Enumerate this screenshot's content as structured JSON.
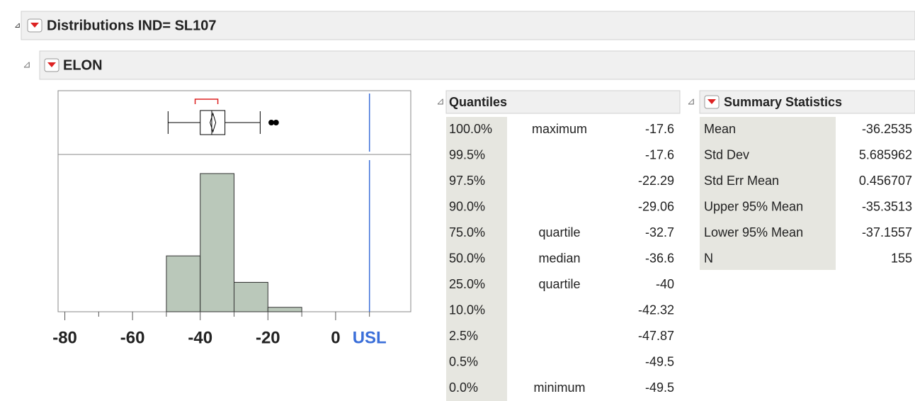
{
  "header": {
    "title": "Distributions IND= SL107"
  },
  "variable": {
    "title": "ELON"
  },
  "chart_data": {
    "type": "histogram",
    "bins": [
      -50,
      -40,
      -30,
      -20,
      -10
    ],
    "values": [
      38,
      94,
      20,
      3
    ],
    "color": "#bac8ba",
    "xlim": [
      -82,
      22.2
    ],
    "ylim": [
      0,
      107
    ],
    "xticks": [
      -80,
      -60,
      -40,
      -20,
      0
    ],
    "xminor_ticks": [
      -70,
      -50,
      -30,
      -10,
      10
    ],
    "reference_line": {
      "label": "USL",
      "value": 10,
      "color": "#3b6fd9"
    },
    "box_plot": {
      "lower_whisker": -49.5,
      "q1": -40,
      "median": -36.6,
      "q3": -32.7,
      "upper_whisker": -22.29,
      "mean": -36.25,
      "shortest_half": [
        -41.5,
        -34.8
      ],
      "outliers": [
        -19,
        -17.6
      ]
    }
  },
  "quantiles": {
    "title": "Quantiles",
    "rows": [
      [
        "100.0%",
        "maximum",
        "-17.6"
      ],
      [
        "99.5%",
        "",
        "-17.6"
      ],
      [
        "97.5%",
        "",
        "-22.29"
      ],
      [
        "90.0%",
        "",
        "-29.06"
      ],
      [
        "75.0%",
        "quartile",
        "-32.7"
      ],
      [
        "50.0%",
        "median",
        "-36.6"
      ],
      [
        "25.0%",
        "quartile",
        "-40"
      ],
      [
        "10.0%",
        "",
        "-42.32"
      ],
      [
        "2.5%",
        "",
        "-47.87"
      ],
      [
        "0.5%",
        "",
        "-49.5"
      ],
      [
        "0.0%",
        "minimum",
        "-49.5"
      ]
    ]
  },
  "summary": {
    "title": "Summary Statistics",
    "rows": [
      [
        "Mean",
        "-36.2535"
      ],
      [
        "Std Dev",
        "5.685962"
      ],
      [
        "Std Err Mean",
        "0.456707"
      ],
      [
        "Upper 95% Mean",
        "-35.3513"
      ],
      [
        "Lower 95% Mean",
        "-37.1557"
      ],
      [
        "N",
        "155"
      ]
    ]
  }
}
